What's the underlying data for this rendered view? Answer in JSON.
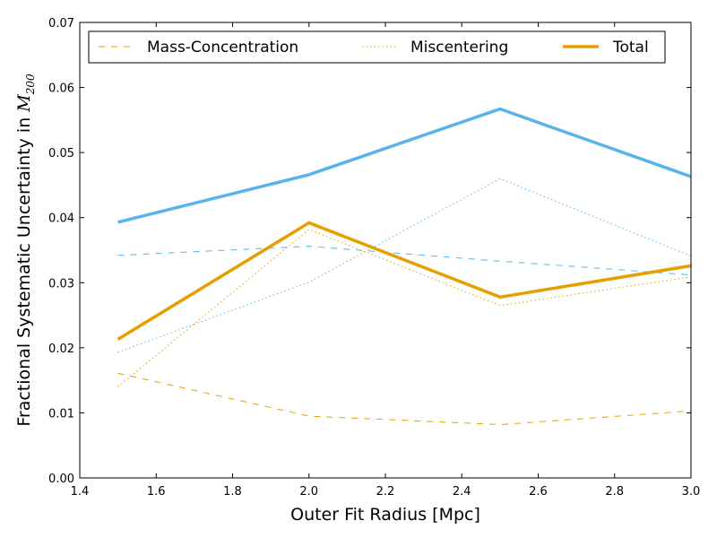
{
  "chart_data": {
    "type": "line",
    "xlabel": "Outer Fit Radius [Mpc]",
    "ylabel": "Fractional Systematic Uncertainty in M200",
    "ylabel_prefix": "Fractional Systematic Uncertainty in ",
    "ylabel_math": "M",
    "ylabel_sub": "200",
    "xlim": [
      1.4,
      3.0
    ],
    "ylim": [
      0.0,
      0.07
    ],
    "xticks": [
      "1.4",
      "1.6",
      "1.8",
      "2.0",
      "2.2",
      "2.4",
      "2.6",
      "2.8",
      "3.0"
    ],
    "yticks": [
      "0.00",
      "0.01",
      "0.02",
      "0.03",
      "0.04",
      "0.05",
      "0.06",
      "0.07"
    ],
    "grid": false,
    "legend_position": "top",
    "legend": [
      {
        "label": "Mass-Concentration",
        "style": "dashed"
      },
      {
        "label": "Miscentering",
        "style": "dotted"
      },
      {
        "label": "Total",
        "style": "solid"
      }
    ],
    "colors": {
      "orange": "#E69F00",
      "blue": "#56B4E9"
    },
    "x": [
      1.5,
      2.0,
      2.5,
      3.0
    ],
    "series": [
      {
        "color": "#56B4E9",
        "style": "solid",
        "values": [
          0.0393,
          0.0466,
          0.0567,
          0.0463
        ]
      },
      {
        "color": "#56B4E9",
        "style": "dashed",
        "values": [
          0.0342,
          0.0356,
          0.0333,
          0.0312
        ]
      },
      {
        "color": "#56B4E9",
        "style": "dotted",
        "values": [
          0.0193,
          0.0301,
          0.046,
          0.0341
        ]
      },
      {
        "color": "#E69F00",
        "style": "solid",
        "values": [
          0.0213,
          0.0392,
          0.0278,
          0.0326
        ]
      },
      {
        "color": "#E69F00",
        "style": "dashed",
        "values": [
          0.0161,
          0.0095,
          0.0082,
          0.0103
        ]
      },
      {
        "color": "#E69F00",
        "style": "dotted",
        "values": [
          0.014,
          0.0382,
          0.0265,
          0.0309
        ]
      }
    ]
  }
}
